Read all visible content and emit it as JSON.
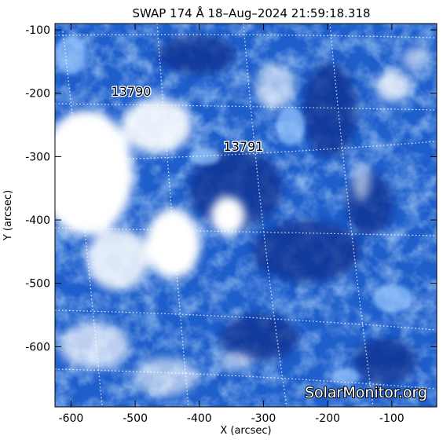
{
  "title": "SWAP 174 Å 18–Aug–2024 21:59:18.318",
  "x_axis": {
    "label": "X (arcsec)",
    "ticks": [
      "-600",
      "-500",
      "-400",
      "-300",
      "-200",
      "-100"
    ],
    "range": [
      -625,
      -30
    ]
  },
  "y_axis": {
    "label": "Y (arcsec)",
    "ticks": [
      "-100",
      "-200",
      "-300",
      "-400",
      "-500",
      "-600"
    ],
    "range": [
      -695,
      -90
    ]
  },
  "active_regions": [
    {
      "number": "13790",
      "x": -532,
      "y": -196
    },
    {
      "number": "13791",
      "x": -330,
      "y": -283
    }
  ],
  "watermark": "SolarMonitor.org",
  "colors": {
    "deep": "#0a2f8f",
    "mid": "#2a6fd6",
    "bright": "#8fc4ff",
    "saturated": "#ffffff"
  }
}
